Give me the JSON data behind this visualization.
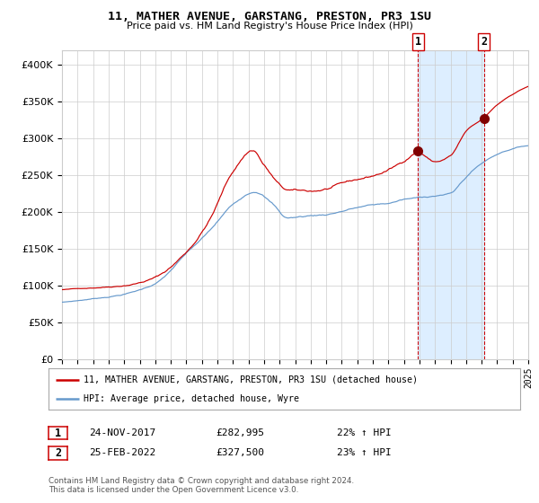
{
  "title": "11, MATHER AVENUE, GARSTANG, PRESTON, PR3 1SU",
  "subtitle": "Price paid vs. HM Land Registry's House Price Index (HPI)",
  "red_label": "11, MATHER AVENUE, GARSTANG, PRESTON, PR3 1SU (detached house)",
  "blue_label": "HPI: Average price, detached house, Wyre",
  "sale1_date": "24-NOV-2017",
  "sale1_price": "£282,995",
  "sale1_hpi": "22% ↑ HPI",
  "sale2_date": "25-FEB-2022",
  "sale2_price": "£327,500",
  "sale2_hpi": "23% ↑ HPI",
  "footer": "Contains HM Land Registry data © Crown copyright and database right 2024.\nThis data is licensed under the Open Government Licence v3.0.",
  "ylim": [
    0,
    420000
  ],
  "yticks": [
    0,
    50000,
    100000,
    150000,
    200000,
    250000,
    300000,
    350000,
    400000
  ],
  "year_start": 1995,
  "year_end": 2025,
  "sale1_year": 2017.9,
  "sale2_year": 2022.15,
  "sale1_red_val": 282995,
  "sale2_red_val": 327500,
  "red_color": "#cc0000",
  "blue_color": "#6699cc",
  "shade_color": "#ddeeff",
  "grid_color": "#cccccc",
  "background_color": "#ffffff"
}
